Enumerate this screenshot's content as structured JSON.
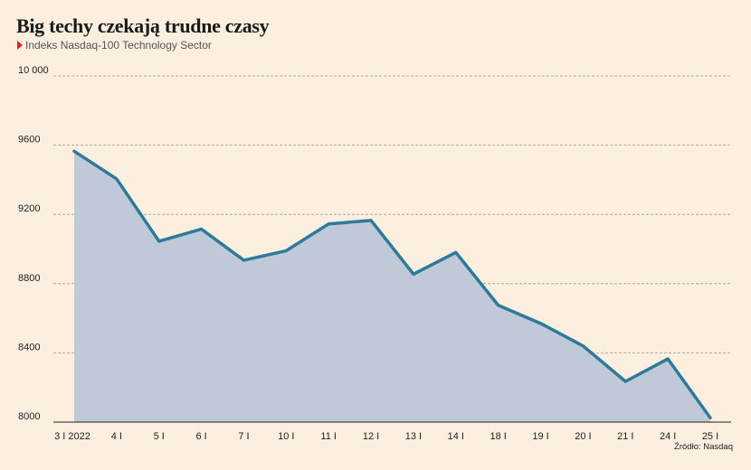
{
  "header": {
    "title": "Big techy czekają trudne czasy",
    "subtitle": "Indeks Nasdaq-100 Technology Sector"
  },
  "footer": {
    "source": "Źródło: Nasdaq"
  },
  "colors": {
    "line": "#2e7a9a",
    "area": "#c0c9d8",
    "grid": "#999999",
    "marker": "#d9232d"
  },
  "chart_data": {
    "type": "area",
    "title": "Big techy czekają trudne czasy",
    "subtitle": "Indeks Nasdaq-100 Technology Sector",
    "categories": [
      "3 I 2022",
      "4 I",
      "5 I",
      "6 I",
      "7 I",
      "10 I",
      "11 I",
      "12 I",
      "13 I",
      "14 I",
      "18 I",
      "19 I",
      "20 I",
      "21 I",
      "24 I",
      "25 I"
    ],
    "values": [
      9565,
      9405,
      9045,
      9115,
      8935,
      8990,
      9145,
      9165,
      8855,
      8980,
      8675,
      8570,
      8440,
      8235,
      8365,
      8025
    ],
    "yticks": [
      8000,
      8400,
      8800,
      9200,
      9600,
      10000
    ],
    "ytick_labels": [
      "8000",
      "8400",
      "8800",
      "9200",
      "9600",
      "10 000"
    ],
    "ylim": [
      8000,
      10000
    ],
    "xlabel": "",
    "ylabel": "",
    "grid": true
  }
}
